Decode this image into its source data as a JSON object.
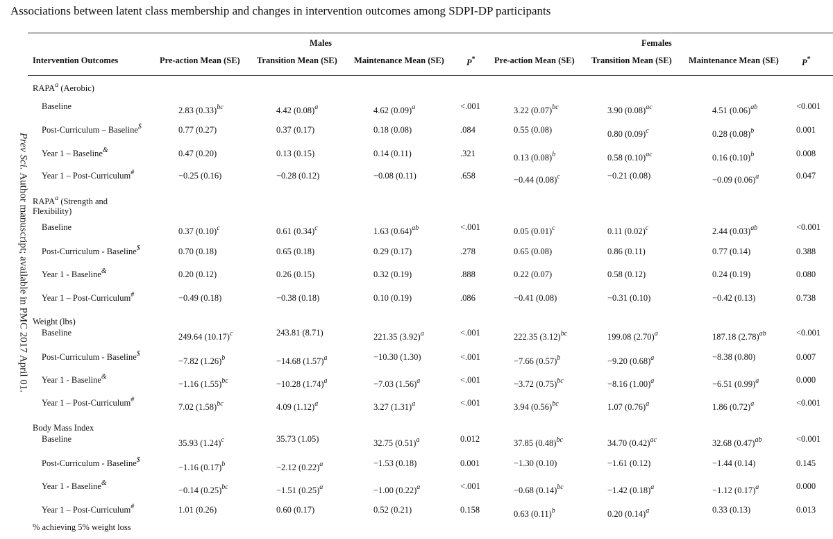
{
  "title": "Associations between latent class membership and changes in intervention outcomes among SDPI-DP participants",
  "side_note": {
    "journal": "Prev Sci.",
    "rest": "Author manuscript; available in PMC 2017 April 01."
  },
  "groups": {
    "males": "Males",
    "females": "Females"
  },
  "columns": {
    "outcome": "Intervention Outcomes",
    "m_pre": "Pre-action Mean (SE)",
    "m_trans": "Transition Mean (SE)",
    "m_maint": "Maintenance Mean (SE)",
    "m_p": "P",
    "f_pre": "Pre-action Mean (SE)",
    "f_trans": "Transition Mean (SE)",
    "f_maint": "Maintenance Mean (SE)",
    "f_p": "P",
    "p_star": "*"
  },
  "sections": [
    {
      "label": "RAPA",
      "label_sup": "a",
      "label_tail": " (Aerobic)",
      "label_line2": "",
      "rows": [
        {
          "label": "Baseline",
          "label_sup": "",
          "m_pre": "2.83 (0.33)",
          "m_pre_sup": "bc",
          "m_trans": "4.42 (0.08)",
          "m_trans_sup": "a",
          "m_maint": "4.62 (0.09)",
          "m_maint_sup": "a",
          "m_p": "<.001",
          "f_pre": "3.22 (0.07)",
          "f_pre_sup": "bc",
          "f_trans": "3.90 (0.08)",
          "f_trans_sup": "ac",
          "f_maint": "4.51 (0.06)",
          "f_maint_sup": "ab",
          "f_p": "<0.001"
        },
        {
          "label": "Post-Curriculum – Baseline",
          "label_sup": "$",
          "m_pre": "0.77 (0.27)",
          "m_pre_sup": "",
          "m_trans": "0.37 (0.17)",
          "m_trans_sup": "",
          "m_maint": "0.18 (0.08)",
          "m_maint_sup": "",
          "m_p": ".084",
          "f_pre": "0.55 (0.08)",
          "f_pre_sup": "",
          "f_trans": "0.80 (0.09)",
          "f_trans_sup": "c",
          "f_maint": "0.28 (0.08)",
          "f_maint_sup": "b",
          "f_p": "0.001"
        },
        {
          "label": "Year 1 – Baseline",
          "label_sup": "&",
          "m_pre": "0.47 (0.20)",
          "m_pre_sup": "",
          "m_trans": "0.13 (0.15)",
          "m_trans_sup": "",
          "m_maint": "0.14 (0.11)",
          "m_maint_sup": "",
          "m_p": ".321",
          "f_pre": "0.13 (0.08)",
          "f_pre_sup": "b",
          "f_trans": "0.58 (0.10)",
          "f_trans_sup": "ac",
          "f_maint": "0.16 (0.10)",
          "f_maint_sup": "b",
          "f_p": "0.008"
        },
        {
          "label": "Year 1 – Post-Curriculum",
          "label_sup": "#",
          "m_pre": "−0.25 (0.16)",
          "m_pre_sup": "",
          "m_trans": "−0.28 (0.12)",
          "m_trans_sup": "",
          "m_maint": "−0.08 (0.11)",
          "m_maint_sup": "",
          "m_p": ".658",
          "f_pre": "−0.44 (0.08)",
          "f_pre_sup": "c",
          "f_trans": "−0.21 (0.08)",
          "f_trans_sup": "",
          "f_maint": "−0.09 (0.06)",
          "f_maint_sup": "a",
          "f_p": "0.047"
        }
      ]
    },
    {
      "label": "RAPA",
      "label_sup": "a",
      "label_tail": " (Strength and",
      "label_line2": "Flexibility)",
      "rows": [
        {
          "label": "Baseline",
          "label_sup": "",
          "m_pre": "0.37 (0.10)",
          "m_pre_sup": "c",
          "m_trans": "0.61 (0.34)",
          "m_trans_sup": "c",
          "m_maint": "1.63 (0.64)",
          "m_maint_sup": "ab",
          "m_p": "<.001",
          "f_pre": "0.05 (0.01)",
          "f_pre_sup": "c",
          "f_trans": "0.11 (0.02)",
          "f_trans_sup": "c",
          "f_maint": "2.44 (0.03)",
          "f_maint_sup": "ab",
          "f_p": "<0.001"
        },
        {
          "label": "Post-Curriculum - Baseline",
          "label_sup": "$",
          "m_pre": "0.70 (0.18)",
          "m_pre_sup": "",
          "m_trans": "0.65 (0.18)",
          "m_trans_sup": "",
          "m_maint": "0.29 (0.17)",
          "m_maint_sup": "",
          "m_p": ".278",
          "f_pre": "0.65 (0.08)",
          "f_pre_sup": "",
          "f_trans": "0.86 (0.11)",
          "f_trans_sup": "",
          "f_maint": "0.77 (0.14)",
          "f_maint_sup": "",
          "f_p": "0.388"
        },
        {
          "label": "Year 1 - Baseline",
          "label_sup": "&",
          "m_pre": "0.20 (0.12)",
          "m_pre_sup": "",
          "m_trans": "0.26 (0.15)",
          "m_trans_sup": "",
          "m_maint": "0.32 (0.19)",
          "m_maint_sup": "",
          "m_p": ".888",
          "f_pre": "0.22 (0.07)",
          "f_pre_sup": "",
          "f_trans": "0.58 (0.12)",
          "f_trans_sup": "",
          "f_maint": "0.24 (0.19)",
          "f_maint_sup": "",
          "f_p": "0.080"
        },
        {
          "label": "Year 1 – Post-Curriculum",
          "label_sup": "#",
          "m_pre": "−0.49 (0.18)",
          "m_pre_sup": "",
          "m_trans": "−0.38 (0.18)",
          "m_trans_sup": "",
          "m_maint": "0.10 (0.19)",
          "m_maint_sup": "",
          "m_p": ".086",
          "f_pre": "−0.41 (0.08)",
          "f_pre_sup": "",
          "f_trans": "−0.31 (0.10)",
          "f_trans_sup": "",
          "f_maint": "−0.42 (0.13)",
          "f_maint_sup": "",
          "f_p": "0.738"
        }
      ]
    },
    {
      "label": "Weight (lbs)",
      "label_sup": "",
      "label_tail": "",
      "label_line2": "",
      "rows": [
        {
          "label": "Baseline",
          "label_sup": "",
          "m_pre": "249.64 (10.17)",
          "m_pre_sup": "c",
          "m_trans": "243.81 (8.71)",
          "m_trans_sup": "",
          "m_maint": "221.35 (3.92)",
          "m_maint_sup": "a",
          "m_p": "<.001",
          "f_pre": "222.35 (3.12)",
          "f_pre_sup": "bc",
          "f_trans": "199.08 (2.70)",
          "f_trans_sup": "a",
          "f_maint": "187.18 (2.78)",
          "f_maint_sup": "ab",
          "f_p": "<0.001"
        },
        {
          "label": "Post-Curriculum - Baseline",
          "label_sup": "$",
          "m_pre": "−7.82 (1.26)",
          "m_pre_sup": "b",
          "m_trans": "−14.68 (1.57)",
          "m_trans_sup": "a",
          "m_maint": "−10.30 (1.30)",
          "m_maint_sup": "",
          "m_p": "<.001",
          "f_pre": "−7.66 (0.57)",
          "f_pre_sup": "b",
          "f_trans": "−9.20 (0.68)",
          "f_trans_sup": "a",
          "f_maint": "−8.38 (0.80)",
          "f_maint_sup": "",
          "f_p": "0.007"
        },
        {
          "label": "Year 1 - Baseline",
          "label_sup": "&",
          "m_pre": "−1.16 (1.55)",
          "m_pre_sup": "bc",
          "m_trans": "−10.28 (1.74)",
          "m_trans_sup": "a",
          "m_maint": "−7.03 (1.56)",
          "m_maint_sup": "a",
          "m_p": "<.001",
          "f_pre": "−3.72 (0.75)",
          "f_pre_sup": "bc",
          "f_trans": "−8.16 (1.00)",
          "f_trans_sup": "a",
          "f_maint": "−6.51 (0.99)",
          "f_maint_sup": "a",
          "f_p": "0.000"
        },
        {
          "label": "Year 1 – Post-Curriculum",
          "label_sup": "#",
          "m_pre": "7.02 (1.58)",
          "m_pre_sup": "bc",
          "m_trans": "4.09 (1.12)",
          "m_trans_sup": "a",
          "m_maint": "3.27 (1.31)",
          "m_maint_sup": "a",
          "m_p": "<.001",
          "f_pre": "3.94 (0.56)",
          "f_pre_sup": "bc",
          "f_trans": "1.07 (0.76)",
          "f_trans_sup": "a",
          "f_maint": "1.86 (0.72)",
          "f_maint_sup": "a",
          "f_p": "<0.001"
        }
      ]
    },
    {
      "label": "Body Mass Index",
      "label_sup": "",
      "label_tail": "",
      "label_line2": "",
      "rows": [
        {
          "label": "Baseline",
          "label_sup": "",
          "m_pre": "35.93 (1.24)",
          "m_pre_sup": "c",
          "m_trans": "35.73 (1.05)",
          "m_trans_sup": "",
          "m_maint": "32.75 (0.51)",
          "m_maint_sup": "a",
          "m_p": "0.012",
          "f_pre": "37.85 (0.48)",
          "f_pre_sup": "bc",
          "f_trans": "34.70 (0.42)",
          "f_trans_sup": "ac",
          "f_maint": "32.68 (0.47)",
          "f_maint_sup": "ab",
          "f_p": "<0.001"
        },
        {
          "label": "Post-Curriculum - Baseline",
          "label_sup": "$",
          "m_pre": "−1.16 (0.17)",
          "m_pre_sup": "b",
          "m_trans": "−2.12 (0.22)",
          "m_trans_sup": "a",
          "m_maint": "−1.53 (0.18)",
          "m_maint_sup": "",
          "m_p": "0.001",
          "f_pre": "−1.30 (0.10)",
          "f_pre_sup": "",
          "f_trans": "−1.61 (0.12)",
          "f_trans_sup": "",
          "f_maint": "−1.44 (0.14)",
          "f_maint_sup": "",
          "f_p": "0.145"
        },
        {
          "label": "Year 1 - Baseline",
          "label_sup": "&",
          "m_pre": "−0.14 (0.25)",
          "m_pre_sup": "bc",
          "m_trans": "−1.51 (0.25)",
          "m_trans_sup": "a",
          "m_maint": "−1.00 (0.22)",
          "m_maint_sup": "a",
          "m_p": "<.001",
          "f_pre": "−0.68 (0.14)",
          "f_pre_sup": "bc",
          "f_trans": "−1.42 (0.18)",
          "f_trans_sup": "a",
          "f_maint": "−1.12 (0.17)",
          "f_maint_sup": "a",
          "f_p": "0.000"
        },
        {
          "label": "Year 1 – Post-Curriculum",
          "label_sup": "#",
          "m_pre": "1.01 (0.26)",
          "m_pre_sup": "",
          "m_trans": "0.60 (0.17)",
          "m_trans_sup": "",
          "m_maint": "0.52 (0.21)",
          "m_maint_sup": "",
          "m_p": "0.158",
          "f_pre": "0.63 (0.11)",
          "f_pre_sup": "b",
          "f_trans": "0.20 (0.14)",
          "f_trans_sup": "a",
          "f_maint": "0.33 (0.13)",
          "f_maint_sup": "",
          "f_p": "0.013"
        }
      ]
    }
  ],
  "trailing_label": "% achieving 5% weight loss"
}
